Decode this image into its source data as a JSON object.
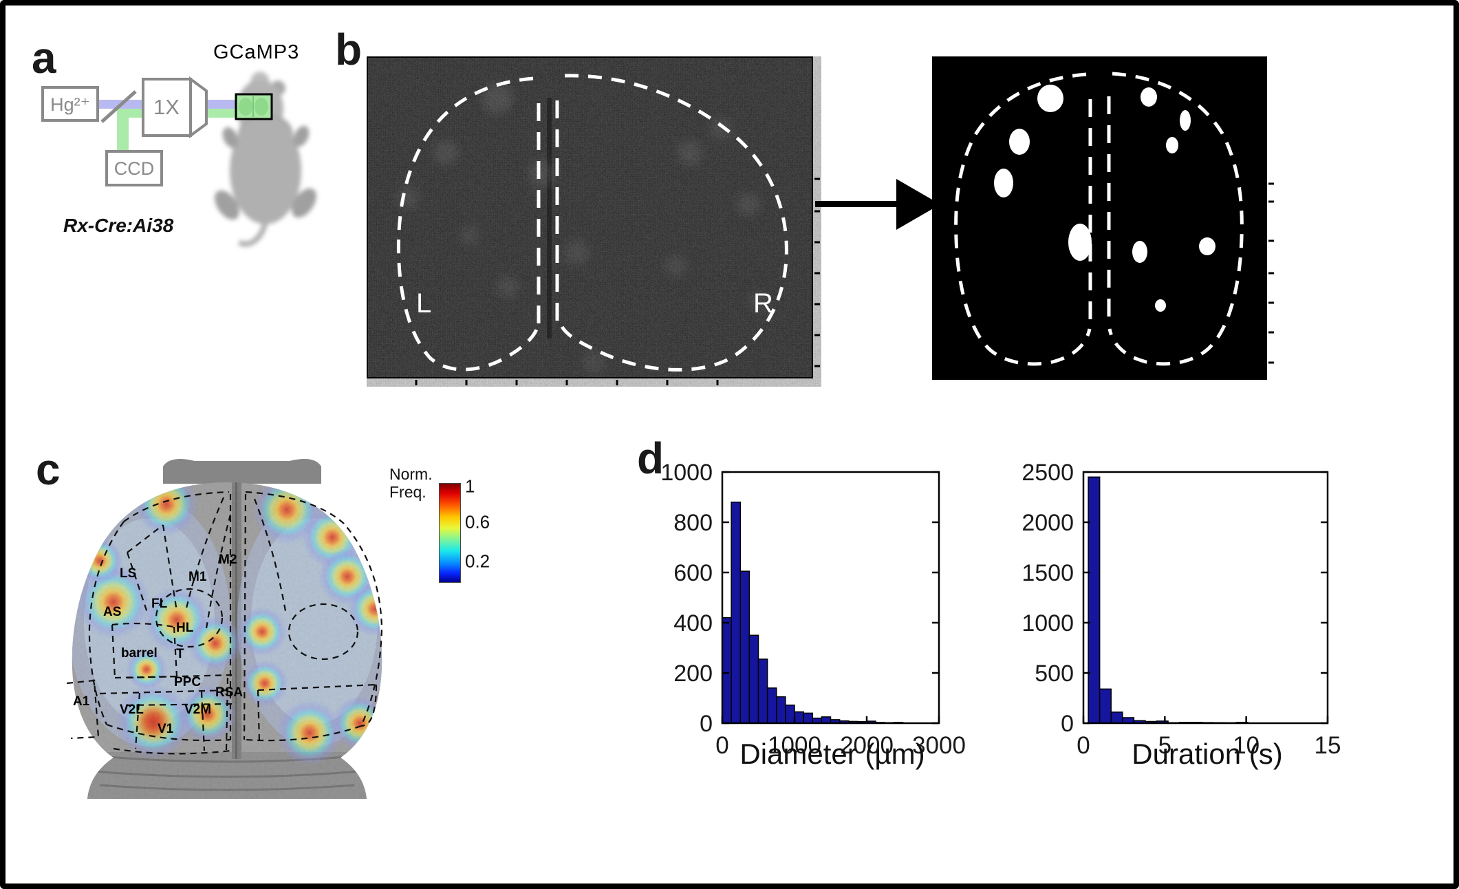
{
  "figure": {
    "background": "#ffffff",
    "border_color": "#000000"
  },
  "panels": {
    "a": {
      "label": "a",
      "excitation_source": "Hg²⁺",
      "objective": "1X",
      "camera": "CCD",
      "reporter": "GCaMP3",
      "reporter_color": "#3ccc3c",
      "mouse_line": "Rx-Cre:Ai38"
    },
    "b": {
      "label": "b",
      "left_hemisphere": "L",
      "right_hemisphere": "R",
      "blobs": [
        [
          172,
          61,
          19,
          20
        ],
        [
          127,
          124,
          15,
          19
        ],
        [
          104,
          184,
          14,
          21
        ],
        [
          215,
          270,
          17,
          27
        ],
        [
          315,
          59,
          12,
          14
        ],
        [
          368,
          93,
          8,
          15
        ],
        [
          349,
          129,
          9,
          12
        ],
        [
          302,
          284,
          11,
          16
        ],
        [
          400,
          276,
          12,
          13
        ],
        [
          332,
          362,
          8,
          9
        ]
      ]
    },
    "c": {
      "label": "c",
      "colorbar": {
        "title_line1": "Norm.",
        "title_line2": "Freq.",
        "ticks": [
          "1",
          "0.6",
          "0.2"
        ],
        "colormap": "jet"
      },
      "regions": [
        "LS",
        "M2",
        "M1",
        "FL",
        "AS",
        "HL",
        "barrel",
        "T",
        "PPC",
        "RSA",
        "A1",
        "V2L",
        "V2M",
        "V1"
      ]
    },
    "d": {
      "label": "d"
    }
  },
  "chart_data": [
    {
      "type": "bar",
      "subtype": "histogram",
      "title": "",
      "xlabel": "Diameter (µm)",
      "ylabel": "",
      "bin_start": 0,
      "bin_width": 125,
      "values": [
        420,
        880,
        605,
        350,
        255,
        140,
        105,
        72,
        45,
        40,
        20,
        25,
        14,
        9,
        7,
        6,
        8,
        3,
        2,
        3
      ],
      "xlim": [
        0,
        3000
      ],
      "ylim": [
        0,
        1000
      ],
      "xticks": [
        0,
        1000,
        2000,
        3000
      ],
      "yticks": [
        0,
        200,
        400,
        600,
        800,
        1000
      ],
      "bar_color": "#15159E",
      "grid": false,
      "legend": null
    },
    {
      "type": "bar",
      "subtype": "histogram",
      "title": "",
      "xlabel": "Duration (s)",
      "ylabel": "",
      "bin_start": 0.3,
      "bin_width": 0.7,
      "values": [
        2450,
        340,
        110,
        55,
        25,
        17,
        21,
        5,
        8,
        8,
        6,
        5,
        4,
        8
      ],
      "xlim": [
        0,
        15
      ],
      "ylim": [
        0,
        2500
      ],
      "xticks": [
        0,
        5,
        10,
        15
      ],
      "yticks": [
        0,
        500,
        1000,
        1500,
        2000,
        2500
      ],
      "bar_color": "#15159E",
      "grid": false,
      "legend": null
    }
  ]
}
